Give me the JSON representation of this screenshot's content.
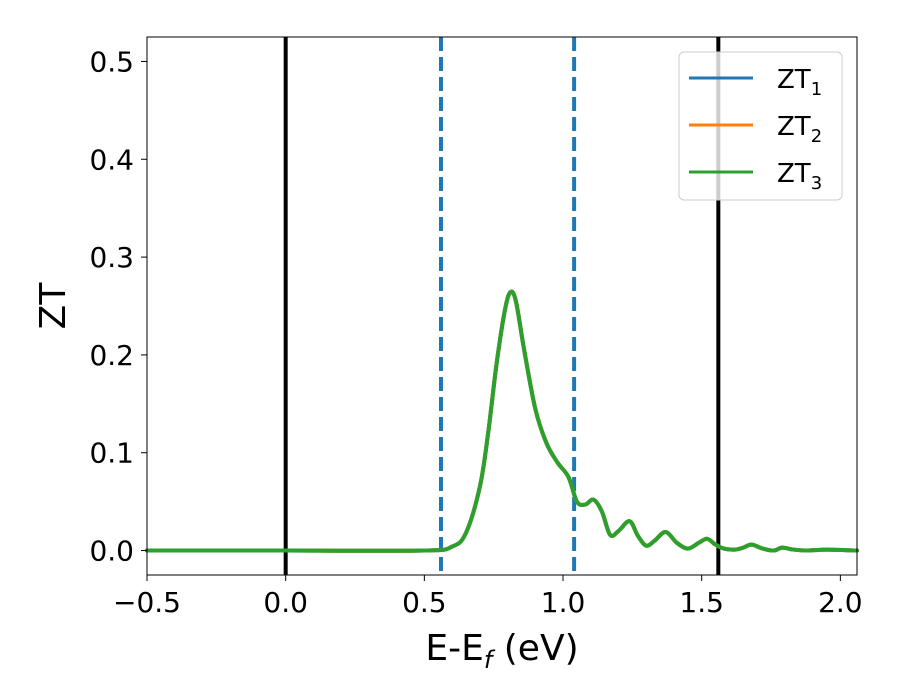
{
  "chart_data": {
    "type": "line",
    "xlabel": "E-E_f (eV)",
    "xlabel_main": "E-E",
    "xlabel_sub": "f",
    "xlabel_tail": " (eV)",
    "ylabel": "ZT",
    "xlim": [
      -0.5,
      2.06
    ],
    "ylim": [
      -0.025,
      0.525
    ],
    "xticks": [
      -0.5,
      0.0,
      0.5,
      1.0,
      1.5,
      2.0
    ],
    "xtick_labels": [
      "−0.5",
      "0.0",
      "0.5",
      "1.0",
      "1.5",
      "2.0"
    ],
    "yticks": [
      0.0,
      0.1,
      0.2,
      0.3,
      0.4,
      0.5
    ],
    "ytick_labels": [
      "0.0",
      "0.1",
      "0.2",
      "0.3",
      "0.4",
      "0.5"
    ],
    "grid": false,
    "legend_position": "top-right",
    "vlines_solid": [
      0.0,
      1.56
    ],
    "vlines_dashed": [
      0.56,
      1.04
    ],
    "colors": {
      "series_1": "#1f77b4",
      "series_2": "#ff7f0e",
      "series_3": "#2ca02c",
      "dashed": "#1f77b4",
      "solid": "#000000"
    },
    "series": [
      {
        "name": "ZT_1",
        "legend_main": "ZT",
        "legend_sub": "1",
        "color": "#1f77b4"
      },
      {
        "name": "ZT_2",
        "legend_main": "ZT",
        "legend_sub": "2",
        "color": "#ff7f0e"
      },
      {
        "name": "ZT_3",
        "legend_main": "ZT",
        "legend_sub": "3",
        "color": "#2ca02c"
      }
    ],
    "x": [
      -0.5,
      0.0,
      0.5,
      0.6,
      0.65,
      0.7,
      0.73,
      0.76,
      0.79,
      0.81,
      0.83,
      0.86,
      0.9,
      0.94,
      0.98,
      1.02,
      1.05,
      1.08,
      1.11,
      1.14,
      1.17,
      1.2,
      1.24,
      1.27,
      1.3,
      1.33,
      1.37,
      1.41,
      1.45,
      1.49,
      1.52,
      1.55,
      1.58,
      1.62,
      1.65,
      1.68,
      1.72,
      1.76,
      1.79,
      1.83,
      1.88,
      1.95,
      2.06
    ],
    "y": [
      0.0,
      0.0,
      0.0,
      0.004,
      0.018,
      0.065,
      0.12,
      0.19,
      0.245,
      0.264,
      0.255,
      0.205,
      0.145,
      0.11,
      0.09,
      0.075,
      0.05,
      0.047,
      0.052,
      0.04,
      0.016,
      0.02,
      0.03,
      0.015,
      0.005,
      0.01,
      0.019,
      0.008,
      0.002,
      0.008,
      0.012,
      0.006,
      0.002,
      0.001,
      0.003,
      0.006,
      0.002,
      0.0,
      0.003,
      0.001,
      0.0,
      0.001,
      0.0
    ]
  }
}
